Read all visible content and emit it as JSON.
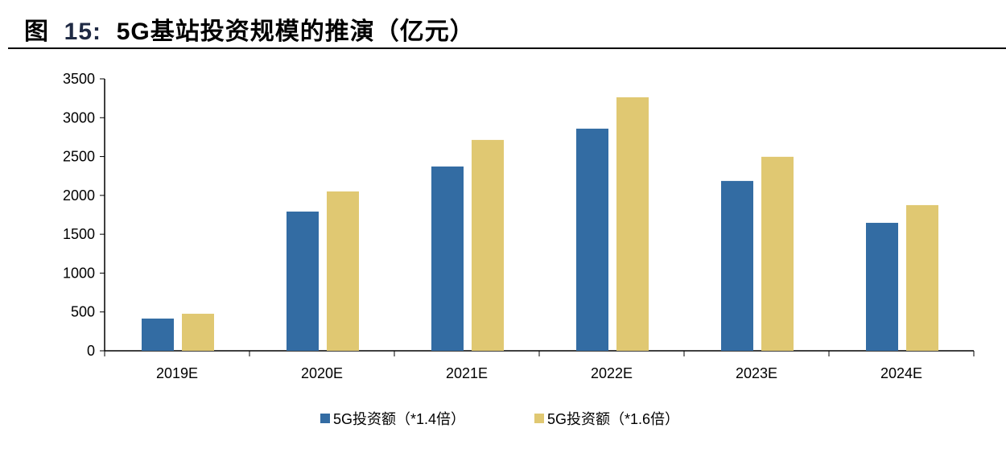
{
  "title_prefix": "图",
  "title_number": "15:",
  "title_text": "5G基站投资规模的推演（亿元）",
  "colors": {
    "series1": "#336ca3",
    "series2": "#e0c872"
  },
  "chart_data": {
    "type": "bar",
    "categories": [
      "2019E",
      "2020E",
      "2021E",
      "2022E",
      "2023E",
      "2024E"
    ],
    "series": [
      {
        "name": "5G投资额（*1.4倍）",
        "values": [
          415,
          1792,
          2372,
          2859,
          2186,
          1647
        ]
      },
      {
        "name": "5G投资额（*1.6倍）",
        "values": [
          477,
          2051,
          2714,
          3263,
          2497,
          1875
        ]
      }
    ],
    "ylim": [
      0,
      3500
    ],
    "yticks": [
      0,
      500,
      1000,
      1500,
      2000,
      2500,
      3000,
      3500
    ],
    "grid": false,
    "legend": "bottom"
  }
}
